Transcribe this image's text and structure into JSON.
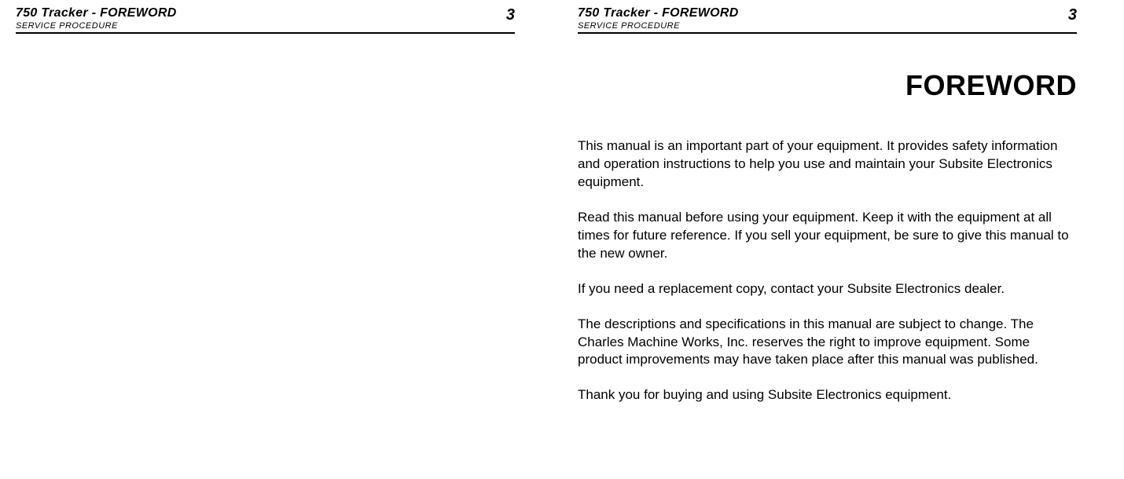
{
  "header": {
    "docTitle": "750 Tracker - FOREWORD",
    "subtitle": "SERVICE PROCEDURE",
    "pageNum": "3"
  },
  "content": {
    "sectionTitle": "FOREWORD",
    "p1": "This manual is an important part of your equipment. It provides safety information and operation instructions to help you use and maintain your Subsite Electronics equipment.",
    "p2": "Read this manual before using your equipment. Keep it with the equipment at all times for future reference. If you sell your equipment, be sure to give this manual to the new owner.",
    "p3": "If you need a replacement copy, contact your Subsite Electronics dealer.",
    "p4": "The descriptions and specifications in this manual are subject to change. The Charles Machine Works, Inc. reserves the right to improve equipment. Some product improvements may have taken place after this manual was published.",
    "p5": "Thank you for buying and using Subsite Electronics equipment."
  }
}
